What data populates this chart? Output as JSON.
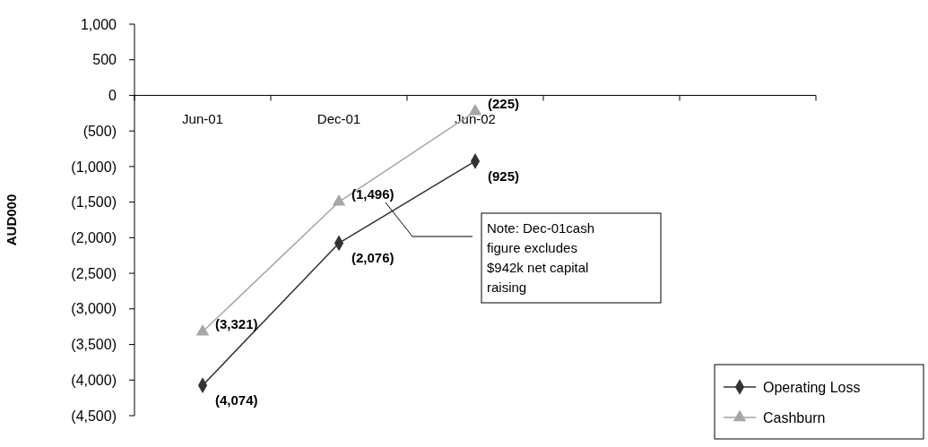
{
  "chart_data": {
    "type": "line",
    "ylabel": "AUD000",
    "categories": [
      "Jun-01",
      "Dec-01",
      "Jun-02",
      null,
      null
    ],
    "ylim": [
      -4500,
      1000
    ],
    "yticks": [
      {
        "value": -4500,
        "label": "(4,500)"
      },
      {
        "value": -4000,
        "label": "(4,000)"
      },
      {
        "value": -3500,
        "label": "(3,500)"
      },
      {
        "value": -3000,
        "label": "(3,000)"
      },
      {
        "value": -2500,
        "label": "(2,500)"
      },
      {
        "value": -2000,
        "label": "(2,000)"
      },
      {
        "value": -1500,
        "label": "(1,500)"
      },
      {
        "value": -1000,
        "label": "(1,000)"
      },
      {
        "value": -500,
        "label": "(500)"
      },
      {
        "value": 0,
        "label": "0"
      },
      {
        "value": 500,
        "label": "500"
      },
      {
        "value": 1000,
        "label": "1,000"
      }
    ],
    "series": [
      {
        "name": "Operating Loss",
        "color": "#333333",
        "marker": "diamond",
        "values": [
          -4074,
          -2076,
          -925,
          null,
          null
        ],
        "value_labels": [
          "(4,074)",
          "(2,076)",
          "(925)",
          null,
          null
        ]
      },
      {
        "name": "Cashburn",
        "color": "#a6a6a6",
        "marker": "triangle",
        "values": [
          -3321,
          -1496,
          -225,
          null,
          null
        ],
        "value_labels": [
          "(3,321)",
          "(1,496)",
          "(225)",
          null,
          null
        ]
      }
    ],
    "annotations": [
      "Note: Dec-01cash figure excludes $942k net capital raising"
    ],
    "grid": false,
    "legend": "bottom right"
  }
}
